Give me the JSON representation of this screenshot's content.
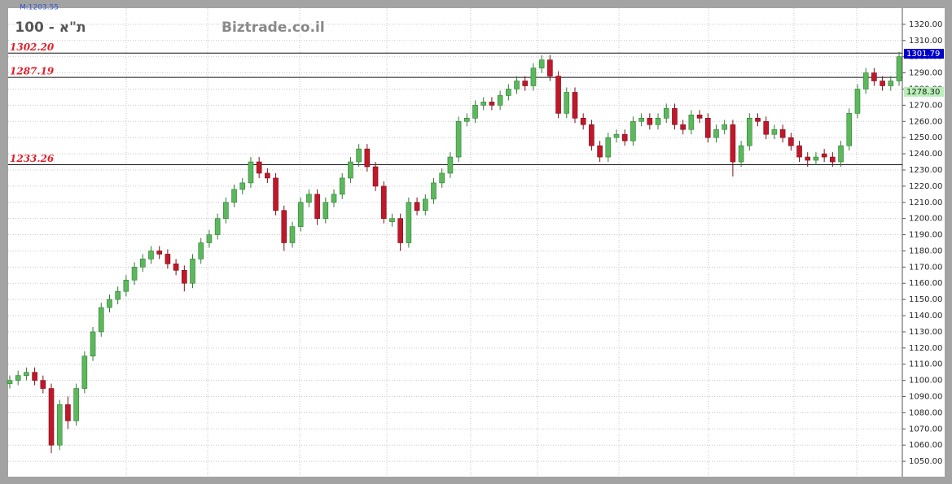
{
  "chart_data": {
    "type": "candlestick",
    "title": "ת\"א - 100",
    "watermark": "Biztrade.co.il",
    "indicator_label": "M:1203.55",
    "up_color": "#5cb85c",
    "down_color": "#c0182a",
    "grid": true,
    "ylim": [
      1040.5,
      1330
    ],
    "yticks": [
      {
        "value": 1050,
        "label": "1050.00"
      },
      {
        "value": 1060,
        "label": "1060.00"
      },
      {
        "value": 1070,
        "label": "1070.00"
      },
      {
        "value": 1080,
        "label": "1080.00"
      },
      {
        "value": 1090,
        "label": "1090.00"
      },
      {
        "value": 1100,
        "label": "1100.00"
      },
      {
        "value": 1110,
        "label": "1110.00"
      },
      {
        "value": 1120,
        "label": "1120.00"
      },
      {
        "value": 1130,
        "label": "1130.00"
      },
      {
        "value": 1140,
        "label": "1140.00"
      },
      {
        "value": 1150,
        "label": "1150.00"
      },
      {
        "value": 1160,
        "label": "1160.00"
      },
      {
        "value": 1170,
        "label": "1170.00"
      },
      {
        "value": 1180,
        "label": "1180.00"
      },
      {
        "value": 1190,
        "label": "1190.00"
      },
      {
        "value": 1200,
        "label": "1200.00"
      },
      {
        "value": 1210,
        "label": "1210.00"
      },
      {
        "value": 1220,
        "label": "1220.00"
      },
      {
        "value": 1230,
        "label": "1230.00"
      },
      {
        "value": 1240,
        "label": "1240.00"
      },
      {
        "value": 1250,
        "label": "1250.00"
      },
      {
        "value": 1260,
        "label": "1260.00"
      },
      {
        "value": 1270,
        "label": "1270.00"
      },
      {
        "value": 1280,
        "label": "1280.00"
      },
      {
        "value": 1290,
        "label": "1290.00"
      },
      {
        "value": 1300,
        "label": "1300.00"
      },
      {
        "value": 1310,
        "label": "1310.00"
      },
      {
        "value": 1320,
        "label": "1320.00"
      }
    ],
    "levels": [
      {
        "value": 1302.2,
        "label": "1302.20"
      },
      {
        "value": 1287.19,
        "label": "1287.19"
      },
      {
        "value": 1233.26,
        "label": "1233.26"
      }
    ],
    "price_tags": [
      {
        "value": 1301.79,
        "label": "1301.79",
        "color": "#0000cc"
      },
      {
        "value": 1278.3,
        "label": "1278.30",
        "color": "#b8f0b8"
      }
    ],
    "open": [
      1098,
      1100,
      1103,
      1105,
      1100,
      1095,
      1060,
      1085,
      1075,
      1095,
      1115,
      1130,
      1145,
      1150,
      1155,
      1162,
      1170,
      1175,
      1180,
      1178,
      1172,
      1168,
      1160,
      1175,
      1185,
      1190,
      1200,
      1210,
      1218,
      1222,
      1235,
      1228,
      1225,
      1205,
      1185,
      1195,
      1210,
      1215,
      1200,
      1210,
      1215,
      1225,
      1235,
      1243,
      1232,
      1220,
      1198,
      1200,
      1185,
      1210,
      1205,
      1212,
      1222,
      1228,
      1238,
      1260,
      1262,
      1270,
      1272,
      1270,
      1276,
      1280,
      1285,
      1282,
      1293,
      1298,
      1288,
      1265,
      1278,
      1262,
      1258,
      1245,
      1238,
      1250,
      1252,
      1248,
      1260,
      1262,
      1258,
      1262,
      1268,
      1258,
      1255,
      1264,
      1262,
      1250,
      1255,
      1258,
      1235,
      1245,
      1262,
      1260,
      1252,
      1255,
      1250,
      1245,
      1238,
      1236,
      1240,
      1238,
      1235,
      1245,
      1265,
      1280,
      1290,
      1285,
      1282,
      1285
    ],
    "high": [
      1103,
      1106,
      1108,
      1108,
      1103,
      1098,
      1088,
      1090,
      1098,
      1118,
      1133,
      1148,
      1153,
      1158,
      1165,
      1173,
      1178,
      1183,
      1183,
      1181,
      1175,
      1171,
      1178,
      1188,
      1193,
      1203,
      1213,
      1221,
      1225,
      1238,
      1238,
      1231,
      1228,
      1208,
      1198,
      1213,
      1218,
      1218,
      1213,
      1218,
      1228,
      1238,
      1246,
      1246,
      1235,
      1223,
      1203,
      1203,
      1213,
      1213,
      1215,
      1225,
      1231,
      1241,
      1263,
      1265,
      1273,
      1275,
      1275,
      1279,
      1283,
      1288,
      1288,
      1296,
      1301,
      1301,
      1291,
      1281,
      1281,
      1265,
      1261,
      1248,
      1253,
      1255,
      1255,
      1263,
      1265,
      1265,
      1265,
      1271,
      1271,
      1261,
      1267,
      1267,
      1265,
      1258,
      1261,
      1261,
      1248,
      1265,
      1265,
      1263,
      1258,
      1258,
      1253,
      1248,
      1241,
      1241,
      1243,
      1241,
      1248,
      1268,
      1283,
      1293,
      1293,
      1288,
      1288,
      1303
    ],
    "low": [
      1095,
      1097,
      1100,
      1097,
      1092,
      1055,
      1057,
      1070,
      1072,
      1092,
      1112,
      1127,
      1142,
      1147,
      1152,
      1159,
      1167,
      1172,
      1175,
      1169,
      1165,
      1155,
      1157,
      1172,
      1182,
      1187,
      1197,
      1207,
      1215,
      1219,
      1225,
      1222,
      1202,
      1180,
      1182,
      1192,
      1207,
      1196,
      1197,
      1207,
      1212,
      1222,
      1232,
      1229,
      1217,
      1197,
      1195,
      1180,
      1182,
      1202,
      1202,
      1209,
      1219,
      1225,
      1235,
      1257,
      1259,
      1267,
      1267,
      1267,
      1273,
      1277,
      1279,
      1279,
      1290,
      1285,
      1262,
      1262,
      1259,
      1255,
      1242,
      1235,
      1235,
      1247,
      1245,
      1245,
      1257,
      1255,
      1255,
      1259,
      1255,
      1252,
      1252,
      1259,
      1247,
      1247,
      1252,
      1226,
      1232,
      1242,
      1257,
      1249,
      1249,
      1247,
      1242,
      1235,
      1232,
      1233,
      1235,
      1232,
      1232,
      1242,
      1262,
      1277,
      1282,
      1279,
      1279,
      1282
    ],
    "close": [
      1100,
      1103,
      1105,
      1100,
      1095,
      1060,
      1085,
      1075,
      1095,
      1115,
      1130,
      1145,
      1150,
      1155,
      1162,
      1170,
      1175,
      1180,
      1178,
      1172,
      1168,
      1160,
      1175,
      1185,
      1190,
      1200,
      1210,
      1218,
      1222,
      1235,
      1228,
      1225,
      1205,
      1185,
      1195,
      1210,
      1215,
      1200,
      1210,
      1215,
      1225,
      1235,
      1243,
      1232,
      1220,
      1200,
      1200,
      1185,
      1210,
      1205,
      1212,
      1222,
      1228,
      1238,
      1260,
      1262,
      1270,
      1272,
      1270,
      1276,
      1280,
      1285,
      1282,
      1293,
      1298,
      1288,
      1265,
      1278,
      1262,
      1258,
      1245,
      1238,
      1250,
      1252,
      1248,
      1260,
      1262,
      1258,
      1262,
      1268,
      1258,
      1255,
      1264,
      1262,
      1250,
      1255,
      1258,
      1235,
      1245,
      1262,
      1260,
      1252,
      1255,
      1250,
      1245,
      1238,
      1236,
      1238,
      1238,
      1235,
      1245,
      1265,
      1280,
      1290,
      1285,
      1282,
      1285,
      1300
    ]
  }
}
